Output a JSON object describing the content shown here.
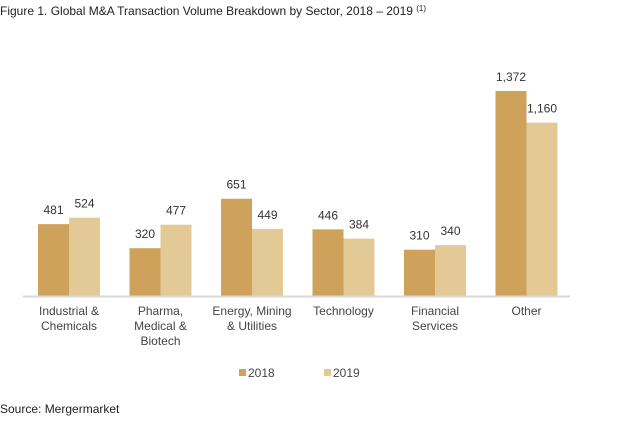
{
  "figure": {
    "title": "Figure 1. Global M&A Transaction Volume Breakdown by Sector, 2018 – 2019",
    "title_note": "(1)",
    "source": "Source: Mergermarket"
  },
  "chart_data": {
    "type": "bar",
    "title": "Global M&A Transaction Volume Breakdown by Sector, 2018 – 2019",
    "xlabel": "",
    "ylabel": "",
    "categories": [
      [
        "Industrial &",
        "Chemicals"
      ],
      [
        "Pharma,",
        "Medical &",
        "Biotech"
      ],
      [
        "Energy, Mining",
        "& Utilities"
      ],
      [
        "Technology"
      ],
      [
        "Financial",
        "Services"
      ],
      [
        "Other"
      ]
    ],
    "series": [
      {
        "name": "2018",
        "color": "#cfa25c",
        "values": [
          481,
          320,
          651,
          446,
          310,
          1372
        ],
        "labels": [
          "481",
          "320",
          "651",
          "446",
          "310",
          "1,372"
        ]
      },
      {
        "name": "2019",
        "color": "#e2c996",
        "values": [
          524,
          477,
          449,
          384,
          340,
          1160
        ],
        "labels": [
          "524",
          "477",
          "449",
          "384",
          "340",
          "1,160"
        ]
      }
    ],
    "ylim": [
      0,
      1500
    ],
    "grid": false,
    "legend": "bottom-center",
    "axis_color": "#d9d9d9"
  }
}
